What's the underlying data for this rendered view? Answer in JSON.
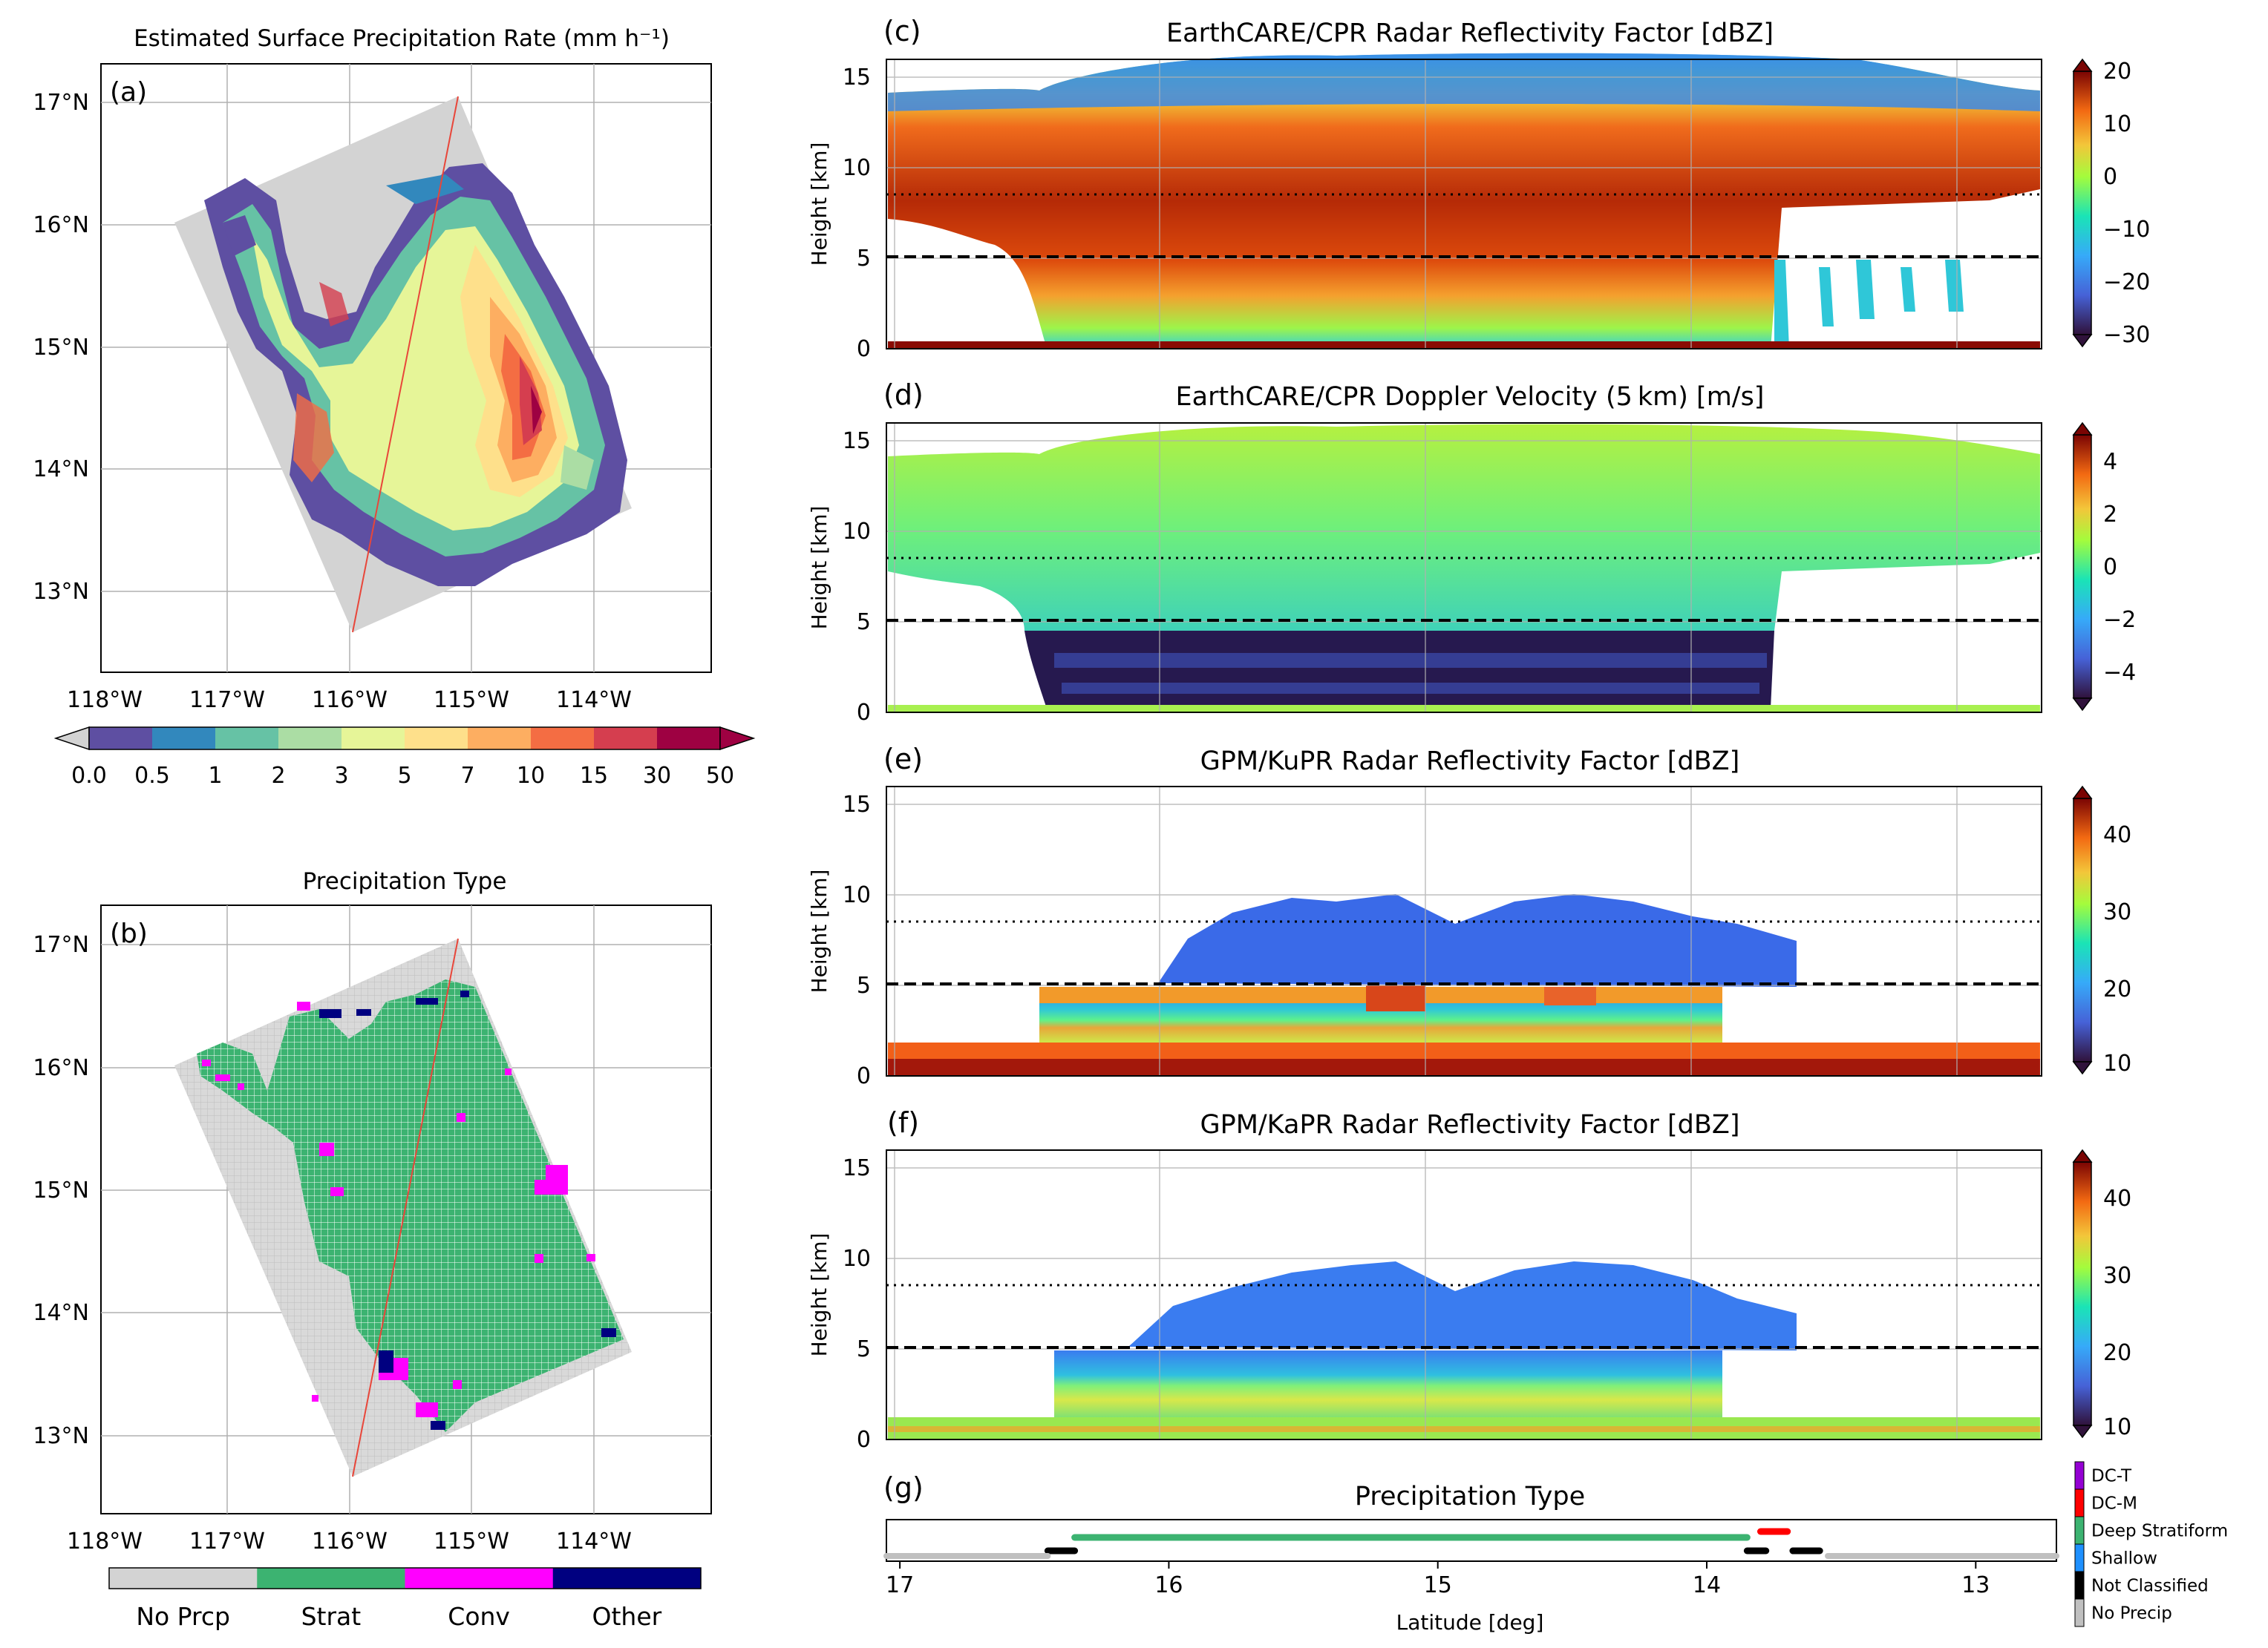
{
  "panel_a": {
    "title": "Estimated Surface Precipitation Rate (mm h⁻¹)",
    "label": "(a)",
    "lon_ticks": [
      "118°W",
      "117°W",
      "116°W",
      "115°W",
      "114°W"
    ],
    "lat_ticks": [
      "17°N",
      "16°N",
      "15°N",
      "14°N",
      "13°N"
    ],
    "colorbar_ticks": [
      "0.0",
      "0.5",
      "1",
      "2",
      "3",
      "5",
      "7",
      "10",
      "15",
      "30",
      "50"
    ],
    "colorbar_colors": [
      "#5e4fa2",
      "#3288bd",
      "#66c2a5",
      "#abdda4",
      "#e6f598",
      "#fee08b",
      "#fdae61",
      "#f46d43",
      "#d53e4f",
      "#9e0142"
    ]
  },
  "panel_b": {
    "title": "Precipitation Type",
    "label": "(b)",
    "lon_ticks": [
      "118°W",
      "117°W",
      "116°W",
      "115°W",
      "114°W"
    ],
    "lat_ticks": [
      "17°N",
      "16°N",
      "15°N",
      "14°N",
      "13°N"
    ],
    "legend": [
      {
        "label": "No Prcp",
        "color": "#d3d3d3"
      },
      {
        "label": "Strat",
        "color": "#3cb371"
      },
      {
        "label": "Conv",
        "color": "#ff00ff"
      },
      {
        "label": "Other",
        "color": "#000080"
      }
    ]
  },
  "panel_c": {
    "label": "(c)",
    "title": "EarthCARE/CPR Radar Reflectivity Factor [dBZ]",
    "ylabel": "Height [km]",
    "yticks": [
      "0",
      "5",
      "10",
      "15"
    ],
    "cbar_ticks": [
      "20",
      "10",
      "0",
      "−10",
      "−20",
      "−30"
    ]
  },
  "panel_d": {
    "label": "(d)",
    "title": "EarthCARE/CPR Doppler Velocity (5 km) [m/s]",
    "ylabel": "Height [km]",
    "yticks": [
      "0",
      "5",
      "10",
      "15"
    ],
    "cbar_ticks": [
      "4",
      "2",
      "0",
      "−2",
      "−4"
    ]
  },
  "panel_e": {
    "label": "(e)",
    "title": "GPM/KuPR Radar Reflectivity Factor [dBZ]",
    "ylabel": "Height [km]",
    "yticks": [
      "0",
      "5",
      "10",
      "15"
    ],
    "cbar_ticks": [
      "40",
      "30",
      "20",
      "10"
    ]
  },
  "panel_f": {
    "label": "(f)",
    "title": "GPM/KaPR Radar Reflectivity Factor [dBZ]",
    "ylabel": "Height [km]",
    "yticks": [
      "0",
      "5",
      "10",
      "15"
    ],
    "cbar_ticks": [
      "40",
      "30",
      "20",
      "10"
    ]
  },
  "panel_g": {
    "label": "(g)",
    "title": "Precipitation Type",
    "xlabel": "Latitude [deg]",
    "xticks": [
      "17",
      "16",
      "15",
      "14",
      "13"
    ],
    "legend": [
      {
        "label": "DC-T",
        "color": "#9400d3"
      },
      {
        "label": "DC-M",
        "color": "#ff0000"
      },
      {
        "label": "Deep Stratiform",
        "color": "#3cb371"
      },
      {
        "label": "Shallow",
        "color": "#1e90ff"
      },
      {
        "label": "Not Classified",
        "color": "#000000"
      },
      {
        "label": "No Precip",
        "color": "#c0c0c0"
      }
    ]
  },
  "chart_data": [
    {
      "type": "heatmap",
      "panel": "a",
      "title": "Estimated Surface Precipitation Rate (mm h⁻¹)",
      "xlim": [
        -118.1,
        -113.1
      ],
      "ylim": [
        12.4,
        17.3
      ],
      "units": "mm h-1",
      "colorbar_bounds": [
        0.0,
        0.5,
        1,
        2,
        3,
        5,
        7,
        10,
        15,
        30,
        50
      ]
    },
    {
      "type": "heatmap",
      "panel": "b",
      "title": "Precipitation Type",
      "xlim": [
        -118.1,
        -113.1
      ],
      "ylim": [
        12.4,
        17.3
      ],
      "categories": [
        "No Prcp",
        "Strat",
        "Conv",
        "Other"
      ]
    },
    {
      "type": "heatmap",
      "panel": "c",
      "title": "EarthCARE/CPR Radar Reflectivity Factor [dBZ]",
      "ylabel": "Height [km]",
      "ylim": [
        0,
        16
      ],
      "xlim": [
        17.05,
        12.7
      ],
      "clim": [
        -30,
        20
      ],
      "reference_lines_km": [
        8.5,
        5.1
      ]
    },
    {
      "type": "heatmap",
      "panel": "d",
      "title": "EarthCARE/CPR Doppler Velocity (5 km) [m/s]",
      "ylabel": "Height [km]",
      "ylim": [
        0,
        16
      ],
      "xlim": [
        17.05,
        12.7
      ],
      "clim": [
        -5,
        5
      ],
      "reference_lines_km": [
        8.5,
        5.1
      ]
    },
    {
      "type": "heatmap",
      "panel": "e",
      "title": "GPM/KuPR Radar Reflectivity Factor [dBZ]",
      "ylabel": "Height [km]",
      "ylim": [
        0,
        16
      ],
      "xlim": [
        17.05,
        12.7
      ],
      "clim": [
        10,
        45
      ],
      "reference_lines_km": [
        8.5,
        5.1
      ]
    },
    {
      "type": "heatmap",
      "panel": "f",
      "title": "GPM/KaPR Radar Reflectivity Factor [dBZ]",
      "ylabel": "Height [km]",
      "ylim": [
        0,
        16
      ],
      "xlim": [
        17.05,
        12.7
      ],
      "clim": [
        10,
        45
      ],
      "reference_lines_km": [
        8.5,
        5.1
      ]
    },
    {
      "type": "scatter",
      "panel": "g",
      "title": "Precipitation Type",
      "xlabel": "Latitude [deg]",
      "xlim": [
        17.05,
        12.7
      ],
      "segments": [
        {
          "class": "Deep Stratiform",
          "from": 16.35,
          "to": 13.85
        },
        {
          "class": "DC-M",
          "from": 13.8,
          "to": 13.7
        },
        {
          "class": "Not Classified",
          "from": 16.45,
          "to": 16.35
        },
        {
          "class": "Not Classified",
          "from": 13.85,
          "to": 13.78
        },
        {
          "class": "Not Classified",
          "from": 13.68,
          "to": 13.58
        },
        {
          "class": "No Precip",
          "from": 17.05,
          "to": 16.45
        },
        {
          "class": "No Precip",
          "from": 13.55,
          "to": 12.7
        }
      ]
    }
  ]
}
